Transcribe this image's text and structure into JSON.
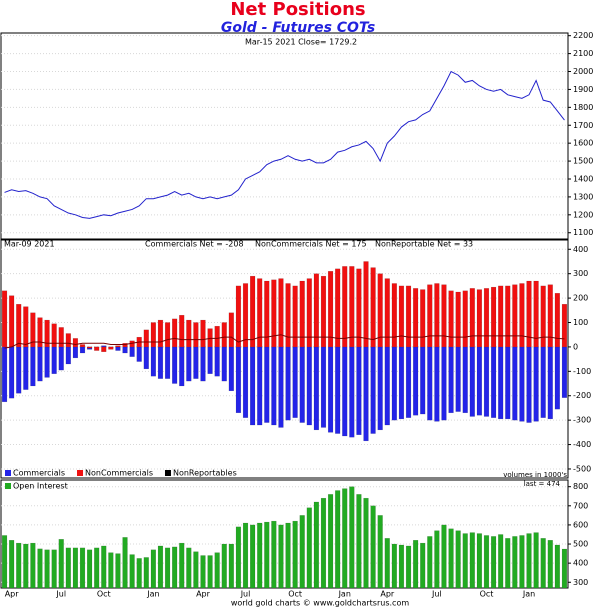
{
  "chart_data": [
    {
      "type": "line",
      "title": "Net Positions",
      "subtitle": "Gold - Futures COTs",
      "annotations": [
        "Mar-15  2021   Close= 1729.2"
      ],
      "color": "#2222cc",
      "ylim": [
        1065,
        2215
      ],
      "yticks": [
        1100,
        1200,
        1300,
        1400,
        1500,
        1600,
        1700,
        1800,
        1900,
        2000,
        2100,
        2200
      ],
      "grid": true,
      "values": [
        1325,
        1340,
        1330,
        1335,
        1320,
        1300,
        1290,
        1250,
        1230,
        1210,
        1200,
        1185,
        1180,
        1190,
        1200,
        1195,
        1210,
        1220,
        1230,
        1250,
        1290,
        1290,
        1300,
        1310,
        1330,
        1310,
        1320,
        1300,
        1290,
        1300,
        1290,
        1300,
        1310,
        1340,
        1400,
        1420,
        1440,
        1480,
        1500,
        1510,
        1530,
        1510,
        1500,
        1510,
        1490,
        1490,
        1510,
        1550,
        1560,
        1580,
        1590,
        1610,
        1570,
        1500,
        1600,
        1640,
        1690,
        1720,
        1730,
        1760,
        1780,
        1850,
        1920,
        2000,
        1980,
        1940,
        1950,
        1920,
        1900,
        1890,
        1900,
        1870,
        1860,
        1850,
        1870,
        1950,
        1840,
        1830,
        1780,
        1729
      ]
    },
    {
      "type": "bar",
      "annotations": [
        "Mar-09  2021",
        "Commercials Net = -208",
        "NonCommercials Net = 175",
        "NonReportable Net = 33",
        "volumes in 1000's"
      ],
      "ylim": [
        -537,
        438
      ],
      "yticks": [
        -500,
        -400,
        -300,
        -200,
        -100,
        0,
        100,
        200,
        300,
        400
      ],
      "grid": true,
      "legend": "bottom-left",
      "series": [
        {
          "name": "Commercials",
          "color": "#2424e8",
          "values": [
            -225,
            -210,
            -190,
            -175,
            -160,
            -140,
            -125,
            -110,
            -95,
            -70,
            -45,
            -25,
            -10,
            0,
            5,
            0,
            -15,
            -25,
            -40,
            -60,
            -90,
            -120,
            -130,
            -130,
            -150,
            -160,
            -140,
            -130,
            -140,
            -110,
            -120,
            -140,
            -180,
            -270,
            -290,
            -320,
            -320,
            -310,
            -320,
            -330,
            -300,
            -290,
            -310,
            -320,
            -340,
            -330,
            -350,
            -355,
            -365,
            -370,
            -360,
            -385,
            -355,
            -340,
            -320,
            -300,
            -295,
            -290,
            -280,
            -275,
            -300,
            -305,
            -300,
            -270,
            -265,
            -270,
            -285,
            -280,
            -285,
            -290,
            -295,
            -295,
            -300,
            -305,
            -310,
            -305,
            -290,
            -295,
            -255,
            -208
          ]
        },
        {
          "name": "NonCommercials",
          "color": "#f01010",
          "values": [
            230,
            210,
            175,
            165,
            140,
            120,
            110,
            95,
            80,
            55,
            35,
            10,
            -5,
            -15,
            -20,
            -10,
            5,
            15,
            25,
            40,
            70,
            100,
            110,
            100,
            115,
            130,
            110,
            100,
            110,
            75,
            85,
            100,
            140,
            250,
            260,
            290,
            280,
            270,
            275,
            280,
            260,
            250,
            270,
            280,
            300,
            290,
            310,
            320,
            330,
            330,
            320,
            350,
            325,
            300,
            280,
            260,
            250,
            250,
            240,
            235,
            255,
            260,
            255,
            230,
            225,
            230,
            240,
            235,
            240,
            245,
            250,
            250,
            255,
            260,
            270,
            270,
            250,
            255,
            220,
            175
          ]
        },
        {
          "name": "NonReportables",
          "color": "#7a0000",
          "style": "line",
          "values": [
            -5,
            0,
            15,
            10,
            20,
            20,
            15,
            15,
            15,
            15,
            10,
            15,
            15,
            15,
            15,
            10,
            10,
            10,
            15,
            20,
            20,
            20,
            20,
            30,
            35,
            30,
            30,
            30,
            30,
            35,
            35,
            40,
            40,
            20,
            30,
            30,
            40,
            40,
            45,
            50,
            40,
            40,
            40,
            40,
            40,
            40,
            40,
            35,
            35,
            40,
            40,
            35,
            30,
            40,
            40,
            40,
            45,
            40,
            40,
            40,
            45,
            45,
            45,
            40,
            40,
            40,
            45,
            45,
            45,
            45,
            45,
            45,
            45,
            45,
            40,
            35,
            40,
            40,
            35,
            33
          ]
        }
      ]
    },
    {
      "type": "bar",
      "annotations": [
        "last = 474"
      ],
      "footer": "world gold charts © www.goldchartsrus.com",
      "ylim": [
        270,
        835
      ],
      "yticks": [
        300,
        400,
        500,
        600,
        700,
        800
      ],
      "grid": true,
      "legend": "top-left",
      "categories": [
        null,
        "Apr",
        null,
        null,
        null,
        null,
        null,
        null,
        "Jul",
        null,
        null,
        null,
        null,
        null,
        "Oct",
        null,
        null,
        null,
        null,
        null,
        null,
        "Jan",
        null,
        null,
        null,
        null,
        null,
        null,
        "Apr",
        null,
        null,
        null,
        null,
        null,
        "Jul",
        null,
        null,
        null,
        null,
        null,
        null,
        "Oct",
        null,
        null,
        null,
        null,
        null,
        null,
        "Jan",
        null,
        null,
        null,
        null,
        null,
        "Apr",
        null,
        null,
        null,
        null,
        null,
        null,
        "Jul",
        null,
        null,
        null,
        null,
        null,
        null,
        "Oct",
        null,
        null,
        null,
        null,
        null,
        "Jan",
        null,
        null,
        null,
        null,
        null
      ],
      "series": [
        {
          "name": "Open Interest",
          "color": "#22aa22",
          "values": [
            545,
            520,
            505,
            500,
            505,
            475,
            470,
            470,
            525,
            480,
            480,
            480,
            470,
            480,
            490,
            455,
            450,
            535,
            445,
            425,
            430,
            470,
            490,
            480,
            485,
            505,
            480,
            460,
            440,
            440,
            455,
            500,
            500,
            590,
            610,
            600,
            610,
            615,
            620,
            600,
            610,
            620,
            650,
            690,
            720,
            740,
            760,
            780,
            790,
            800,
            760,
            740,
            700,
            650,
            530,
            500,
            495,
            490,
            520,
            505,
            540,
            570,
            600,
            580,
            570,
            555,
            560,
            555,
            545,
            540,
            550,
            530,
            540,
            545,
            555,
            560,
            530,
            520,
            495,
            474
          ]
        }
      ]
    }
  ]
}
